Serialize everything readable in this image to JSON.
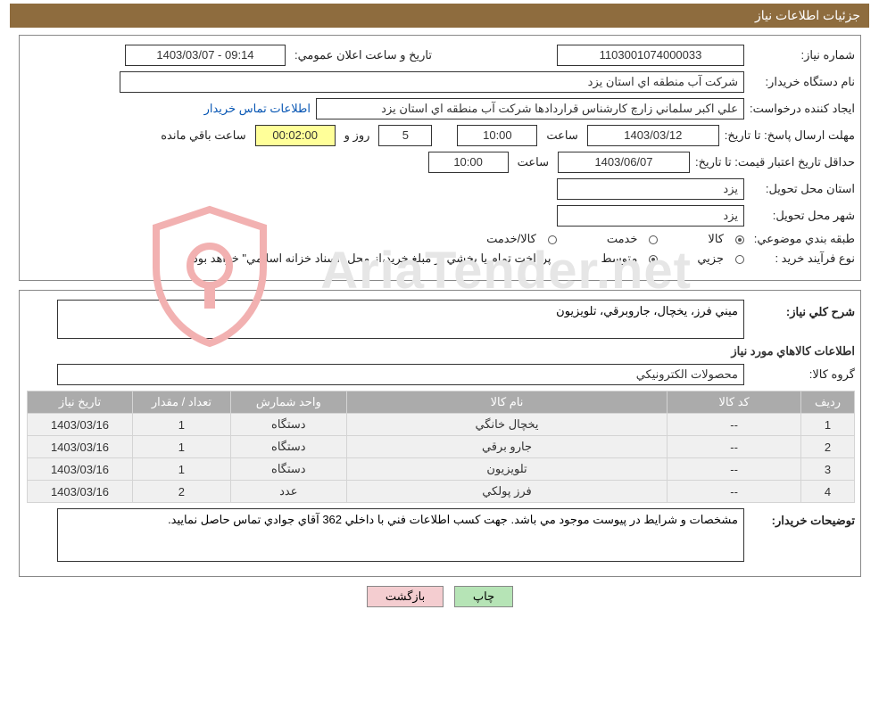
{
  "title": "جزئيات اطلاعات نياز",
  "labels": {
    "need_no": "شماره نياز:",
    "buyer": "نام دستگاه خريدار:",
    "requester": "ايجاد كننده درخواست:",
    "contact": "اطلاعات تماس خريدار",
    "deadline": "مهلت ارسال پاسخ:",
    "to_date": "تا تاريخ:",
    "time": "ساعت",
    "day_and": "روز و",
    "remaining": "ساعت باقي مانده",
    "validity": "حداقل تاريخ اعتبار قيمت:",
    "province": "استان محل تحويل:",
    "city": "شهر محل تحويل:",
    "category": "طبقه بندي موضوعي:",
    "cat_goods": "كالا",
    "cat_service": "خدمت",
    "cat_gs": "كالا/خدمت",
    "purchase_type": "نوع فرآيند خريد :",
    "pt_partial": "جزيي",
    "pt_medium": "متوسط",
    "general_desc": "شرح كلي نياز:",
    "goods_info": "اطلاعات كالاهاي مورد نياز",
    "group": "گروه كالا:",
    "notes_h": "توضيحات خريدار:",
    "announce": "تاريخ و ساعت اعلان عمومي:"
  },
  "values": {
    "need_no": "1103001074000033",
    "announce": "09:14 - 1403/03/07",
    "buyer": "شركت آب منطقه اي استان يزد",
    "requester": "علي اكبر سلماني زارچ كارشناس قراردادها شركت آب منطقه اي استان يزد",
    "date1": "1403/03/12",
    "time1": "10:00",
    "days": "5",
    "remain_clock": "00:02:00",
    "date2": "1403/06/07",
    "time2": "10:00",
    "province": "يزد",
    "city": "يزد",
    "payment_note": "پرداخت تمام يا بخشي از مبلغ خريد،از محل \"اسناد خزانه اسلامي\" خواهد بود.",
    "general_desc": "ميني فرز، يخچال، جاروبرقي، تلويزيون",
    "group": "محصولات الكترونيكي",
    "notes": "مشخصات و شرايط در پيوست موجود مي باشد. جهت كسب اطلاعات فني با داخلي 362 آقاي جوادي تماس حاصل نماييد."
  },
  "table": {
    "headers": {
      "row": "رديف",
      "code": "كد كالا",
      "name": "نام كالا",
      "unit": "واحد شمارش",
      "qty": "تعداد / مقدار",
      "date": "تاريخ نياز"
    },
    "rows": [
      {
        "row": "1",
        "code": "--",
        "name": "يخچال خانگي",
        "unit": "دستگاه",
        "qty": "1",
        "date": "1403/03/16"
      },
      {
        "row": "2",
        "code": "--",
        "name": "جارو برقي",
        "unit": "دستگاه",
        "qty": "1",
        "date": "1403/03/16"
      },
      {
        "row": "3",
        "code": "--",
        "name": "تلويزيون",
        "unit": "دستگاه",
        "qty": "1",
        "date": "1403/03/16"
      },
      {
        "row": "4",
        "code": "--",
        "name": "فرز پولكي",
        "unit": "عدد",
        "qty": "2",
        "date": "1403/03/16"
      }
    ],
    "col_widths": {
      "row": "60px",
      "code": "150px",
      "name": "360px",
      "unit": "130px",
      "qty": "110px",
      "date": "118px"
    }
  },
  "buttons": {
    "print": "چاپ",
    "back": "بازگشت"
  },
  "colors": {
    "title_bg": "#8e6c3e",
    "title_fg": "#ffffff",
    "panel_border": "#888888",
    "th_bg": "#ababab",
    "td_bg": "#f0f0f0",
    "link": "#0655b3",
    "btn_green": "#b6e4b6",
    "btn_pink": "#f4cdd0",
    "watermark": "#e6e6e6",
    "shield": "#f2b1b1"
  },
  "watermark_text": "AriaTender.net"
}
